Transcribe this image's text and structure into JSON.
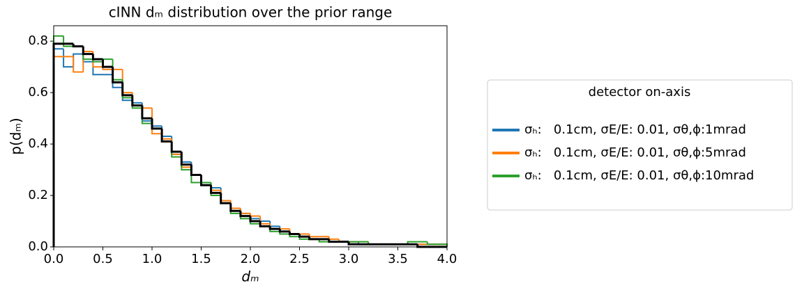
{
  "chart_data": {
    "type": "histogram",
    "title": "cINN dₘ distribution over the prior range",
    "x_label": "dₘ",
    "y_label": "p(dₘ)",
    "bins": [
      0,
      0.1,
      0.2,
      0.3,
      0.4,
      0.5,
      0.6,
      0.7,
      0.8,
      0.9,
      1.0,
      1.1,
      1.2,
      1.3,
      1.4,
      1.5,
      1.6,
      1.7,
      1.8,
      1.9,
      2.0,
      2.1,
      2.2,
      2.3,
      2.4,
      2.5,
      2.6,
      2.7,
      2.8,
      2.9,
      3.0,
      3.1,
      3.2,
      3.3,
      3.4,
      3.5,
      3.6,
      3.7,
      3.8,
      3.9,
      4.0
    ],
    "series": [
      {
        "name": "σₕ:   0.1cm, σE/E: 0.01, σθ,ϕ:1mrad",
        "color": "#1f77b4",
        "values": [
          0.77,
          0.7,
          0.75,
          0.72,
          0.67,
          0.67,
          0.62,
          0.57,
          0.56,
          0.49,
          0.47,
          0.43,
          0.36,
          0.33,
          0.28,
          0.25,
          0.23,
          0.17,
          0.15,
          0.13,
          0.11,
          0.1,
          0.08,
          0.06,
          0.05,
          0.04,
          0.03,
          0.03,
          0.02,
          0.02,
          0.02,
          0.01,
          0.01,
          0.01,
          0.01,
          0.01,
          0.01,
          0.01,
          0.01,
          0.01
        ]
      },
      {
        "name": "σₕ:   0.1cm, σE/E: 0.01, σθ,ϕ:5mrad",
        "color": "#ff7f0e",
        "values": [
          0.74,
          0.74,
          0.68,
          0.76,
          0.7,
          0.69,
          0.69,
          0.6,
          0.55,
          0.54,
          0.44,
          0.42,
          0.36,
          0.31,
          0.28,
          0.24,
          0.22,
          0.18,
          0.15,
          0.13,
          0.12,
          0.09,
          0.07,
          0.07,
          0.05,
          0.05,
          0.04,
          0.04,
          0.03,
          0.02,
          0.02,
          0.02,
          0.01,
          0.01,
          0.01,
          0.01,
          0.01,
          0.01,
          0.01,
          0.01
        ]
      },
      {
        "name": "σₕ:   0.1cm, σE/E: 0.01, σθ,ϕ:10mrad",
        "color": "#2ca02c",
        "values": [
          0.82,
          0.78,
          0.78,
          0.73,
          0.72,
          0.73,
          0.65,
          0.58,
          0.54,
          0.48,
          0.46,
          0.41,
          0.35,
          0.3,
          0.25,
          0.25,
          0.2,
          0.17,
          0.13,
          0.11,
          0.09,
          0.08,
          0.06,
          0.05,
          0.04,
          0.03,
          0.03,
          0.02,
          0.02,
          0.02,
          0.02,
          0.02,
          0.01,
          0.01,
          0.01,
          0.01,
          0.02,
          0.02,
          0.01,
          0.01
        ]
      },
      {
        "color": "#000000",
        "values": [
          0.79,
          0.79,
          0.78,
          0.75,
          0.73,
          0.7,
          0.64,
          0.59,
          0.55,
          0.5,
          0.46,
          0.41,
          0.37,
          0.32,
          0.28,
          0.24,
          0.21,
          0.17,
          0.14,
          0.12,
          0.1,
          0.08,
          0.07,
          0.06,
          0.05,
          0.04,
          0.03,
          0.03,
          0.02,
          0.02,
          0.01,
          0.01,
          0.01,
          0.01,
          0.01,
          0.01,
          0.01,
          0.0,
          0.0,
          0.0
        ]
      }
    ],
    "xlim": [
      0,
      4
    ],
    "ylim": [
      0,
      0.86
    ],
    "xticks": [
      {
        "value": 0,
        "label": "0.0"
      },
      {
        "value": 0.5,
        "label": "0.5"
      },
      {
        "value": 1,
        "label": "1.0"
      },
      {
        "value": 1.5,
        "label": "1.5"
      },
      {
        "value": 2,
        "label": "2.0"
      },
      {
        "value": 2.5,
        "label": "2.5"
      },
      {
        "value": 3,
        "label": "3.0"
      },
      {
        "value": 3.5,
        "label": "3.5"
      },
      {
        "value": 4,
        "label": "4.0"
      }
    ],
    "yticks": [
      {
        "value": 0,
        "label": "0.0"
      },
      {
        "value": 0.2,
        "label": "0.2"
      },
      {
        "value": 0.4,
        "label": "0.4"
      },
      {
        "value": 0.6,
        "label": "0.6"
      },
      {
        "value": 0.8,
        "label": "0.8"
      }
    ],
    "legend_title": "detector on-axis",
    "legend_position": "right",
    "grid": false
  }
}
